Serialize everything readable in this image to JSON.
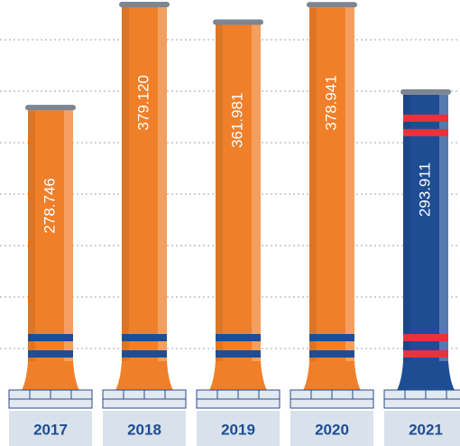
{
  "chart_data": {
    "type": "bar",
    "categories": [
      "2017",
      "2018",
      "2019",
      "2020",
      "2021"
    ],
    "values": [
      278.746,
      379.12,
      361.981,
      378.941,
      293.911
    ],
    "value_labels": [
      "278.746",
      "379.120",
      "361.981",
      "378.941",
      "293.911"
    ],
    "colors": [
      "#f07f2a",
      "#f07f2a",
      "#f07f2a",
      "#f07f2a",
      "#1e4d94"
    ],
    "stripe_colors": [
      "#1e4d94",
      "#1e4d94",
      "#1e4d94",
      "#1e4d94",
      "#e8323c"
    ],
    "grid": true
  }
}
